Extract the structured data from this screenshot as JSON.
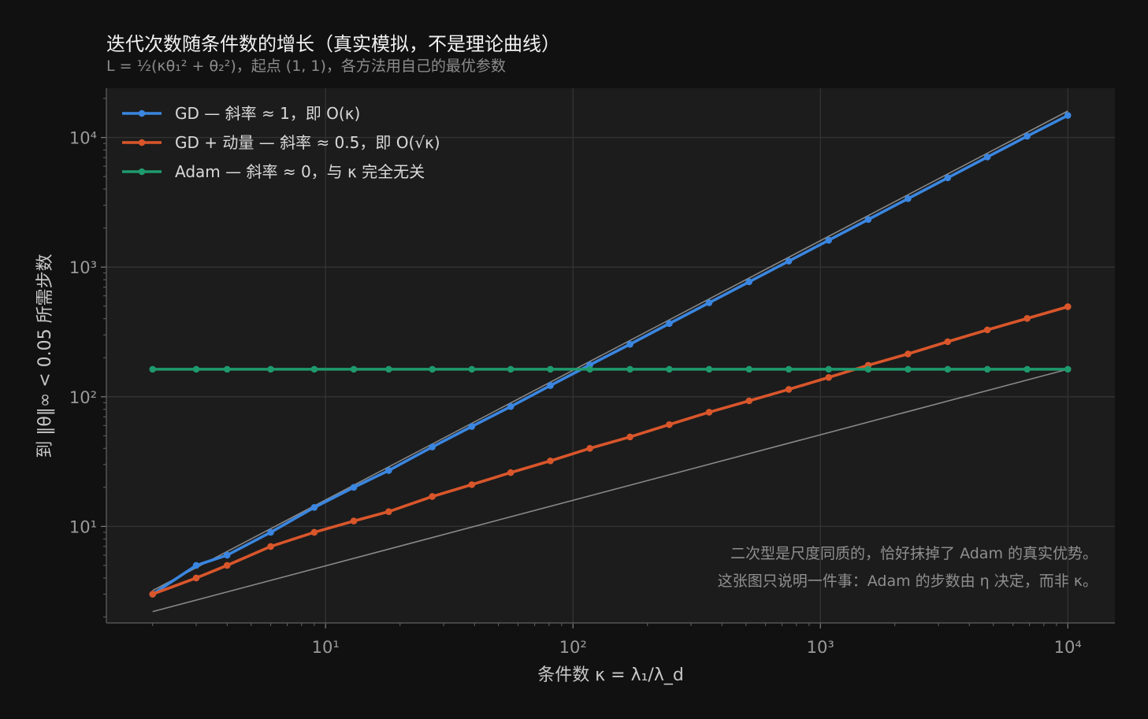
{
  "title": "迭代次数随条件数的增长（真实模拟，不是理论曲线）",
  "subtitle": "L = ½(κθ₁² + θ₂²)，起点 (1, 1)，各方法用自己的最优参数",
  "colors": {
    "background": "#111111",
    "plot_bg": "#1c1c1c",
    "grid": "#333333",
    "gd": "#3a86e0",
    "momentum": "#d9562b",
    "adam": "#1f9a6e",
    "reference": "#888888"
  },
  "chart_data": {
    "type": "line",
    "xlabel": "条件数 κ = λ₁/λ_d",
    "ylabel": "到 ‖θ‖∞ < 0.05 所需步数",
    "xscale": "log",
    "yscale": "log",
    "xlim": [
      1.3,
      15500
    ],
    "ylim": [
      1.8,
      24000
    ],
    "xticks": [
      {
        "value": 10,
        "label": "10¹"
      },
      {
        "value": 100,
        "label": "10²"
      },
      {
        "value": 1000,
        "label": "10³"
      },
      {
        "value": 10000,
        "label": "10⁴"
      }
    ],
    "yticks": [
      {
        "value": 10,
        "label": "10¹"
      },
      {
        "value": 100,
        "label": "10²"
      },
      {
        "value": 1000,
        "label": "10³"
      },
      {
        "value": 10000,
        "label": "10⁴"
      }
    ],
    "grid": true,
    "legend_position": "top-left",
    "x": [
      2,
      3,
      4,
      6,
      9,
      13,
      18,
      27,
      39,
      56,
      81,
      117,
      170,
      245,
      355,
      515,
      745,
      1080,
      1560,
      2260,
      3270,
      4730,
      6850,
      10000
    ],
    "series": [
      {
        "name": "GD — 斜率 ≈ 1，即 O(κ)",
        "color": "#3a86e0",
        "values": [
          3,
          5,
          6,
          9,
          14,
          20,
          27,
          41,
          59,
          84,
          122,
          176,
          254,
          367,
          531,
          770,
          1113,
          1612,
          2330,
          3375,
          4885,
          7070,
          10230,
          14800
        ]
      },
      {
        "name": "GD + 动量 — 斜率 ≈ 0.5，即 O(√κ)",
        "color": "#d9562b",
        "values": [
          3,
          4,
          5,
          7,
          9,
          11,
          13,
          17,
          21,
          26,
          32,
          40,
          49,
          61,
          76,
          93,
          114,
          141,
          175,
          214,
          266,
          328,
          402,
          495
        ]
      },
      {
        "name": "Adam — 斜率 ≈ 0，与 κ 完全无关",
        "color": "#1f9a6e",
        "values": [
          163,
          163,
          163,
          163,
          163,
          163,
          163,
          163,
          163,
          163,
          163,
          163,
          163,
          163,
          163,
          163,
          163,
          163,
          163,
          163,
          163,
          163,
          163,
          163
        ]
      }
    ],
    "reference_lines": [
      {
        "x": [
          2,
          10000
        ],
        "y": [
          3.2,
          16000
        ],
        "color": "#888888"
      },
      {
        "x": [
          2,
          10000
        ],
        "y": [
          2.2,
          163
        ],
        "color": "#888888"
      }
    ],
    "annotations": [
      "二次型是尺度同质的，恰好抹掉了 Adam 的真实优势。",
      "这张图只说明一件事：Adam 的步数由 η 决定，而非 κ。"
    ]
  }
}
